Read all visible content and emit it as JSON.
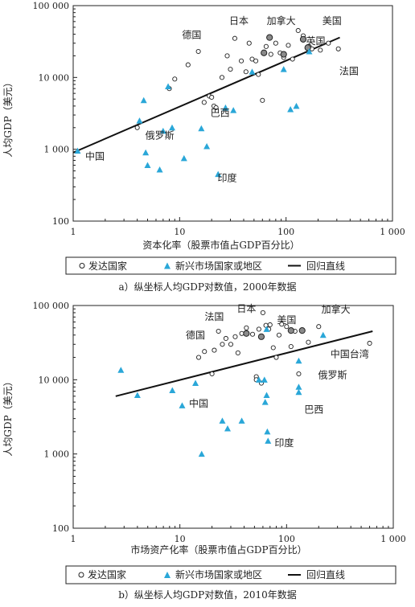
{
  "colors": {
    "emerging": "#2aa7d8",
    "developed_fill": "#ffffff",
    "highlighted_fill": "#8a8a8a",
    "line": "#111111"
  },
  "chart_data": [
    {
      "type": "scatter",
      "title": "a）纵坐标人均GDP对数值，2000年数据",
      "xlabel": "资本化率（股票市值占GDP百分比）",
      "ylabel": "人均GDP（美元）",
      "x_scale": "log",
      "y_scale": "log",
      "xlim": [
        1,
        1000
      ],
      "ylim": [
        100,
        100000
      ],
      "x_ticks": [
        "1",
        "10",
        "100",
        "1 000"
      ],
      "y_ticks": [
        "100",
        "1 000",
        "10 000",
        "100 000"
      ],
      "legend": {
        "placement": "below",
        "items": [
          "发达国家",
          "新兴市场国家或地区",
          "回归直线"
        ]
      },
      "regression": {
        "x": [
          1,
          320
        ],
        "y": [
          900,
          36000
        ]
      },
      "developed": [
        [
          4,
          2000
        ],
        [
          8,
          7000
        ],
        [
          9,
          9500
        ],
        [
          12,
          15000
        ],
        [
          15,
          23000
        ],
        [
          17,
          4500
        ],
        [
          19,
          5500
        ],
        [
          20,
          5300
        ],
        [
          21,
          4000
        ],
        [
          22,
          3800
        ],
        [
          25,
          10000
        ],
        [
          28,
          20000
        ],
        [
          30,
          13000
        ],
        [
          33,
          35000
        ],
        [
          38,
          17000
        ],
        [
          42,
          12000
        ],
        [
          45,
          30000
        ],
        [
          48,
          18000
        ],
        [
          52,
          17000
        ],
        [
          55,
          11000
        ],
        [
          60,
          4800
        ],
        [
          65,
          27000
        ],
        [
          72,
          21000
        ],
        [
          80,
          30000
        ],
        [
          88,
          22000
        ],
        [
          95,
          19000
        ],
        [
          105,
          28000
        ],
        [
          115,
          18000
        ],
        [
          130,
          45000
        ],
        [
          145,
          38000
        ],
        [
          165,
          27000
        ],
        [
          175,
          25000
        ],
        [
          210,
          24000
        ],
        [
          250,
          30000
        ],
        [
          310,
          25000
        ]
      ],
      "highlighted": [
        [
          70,
          36000
        ],
        [
          62,
          22000
        ],
        [
          95,
          21000
        ],
        [
          145,
          34000
        ],
        [
          160,
          26000
        ]
      ],
      "emerging": [
        [
          1.1,
          950
        ],
        [
          4.2,
          2500
        ],
        [
          4.6,
          4800
        ],
        [
          4.8,
          900
        ],
        [
          5.0,
          600
        ],
        [
          6.5,
          520
        ],
        [
          7.0,
          1800
        ],
        [
          7.8,
          7500
        ],
        [
          8.5,
          2000
        ],
        [
          11,
          750
        ],
        [
          16,
          1950
        ],
        [
          18,
          1100
        ],
        [
          23,
          450
        ],
        [
          27,
          3800
        ],
        [
          32,
          3500
        ],
        [
          48,
          12000
        ],
        [
          95,
          13000
        ],
        [
          110,
          3600
        ],
        [
          125,
          4000
        ],
        [
          165,
          23000
        ]
      ],
      "labels": [
        {
          "text": "日本",
          "x": 36,
          "y": 55000
        },
        {
          "text": "加拿大",
          "x": 90,
          "y": 55000
        },
        {
          "text": "美国",
          "x": 270,
          "y": 55000
        },
        {
          "text": "德国",
          "x": 13,
          "y": 35000
        },
        {
          "text": "英国",
          "x": 190,
          "y": 29000
        },
        {
          "text": "法国",
          "x": 390,
          "y": 11000
        },
        {
          "text": "巴西",
          "x": 24,
          "y": 2900
        },
        {
          "text": "俄罗斯",
          "x": 6.5,
          "y": 1400
        },
        {
          "text": "中国",
          "x": 1.6,
          "y": 720
        },
        {
          "text": "印度",
          "x": 28,
          "y": 360
        }
      ]
    },
    {
      "type": "scatter",
      "title": "b）纵坐标人均GDP对数值，2010年数据",
      "xlabel": "市场资产化率（股票市值占GDP百分比）",
      "ylabel": "人均GDP（美元）",
      "x_scale": "log",
      "y_scale": "log",
      "xlim": [
        1,
        1000
      ],
      "ylim": [
        100,
        100000
      ],
      "x_ticks": [
        "1",
        "10",
        "100",
        "1 000"
      ],
      "y_ticks": [
        "100",
        "1 000",
        "10 000",
        "100 000"
      ],
      "legend": {
        "placement": "below",
        "items": [
          "发达国家",
          "新兴市场国家或地区",
          "回归直线"
        ]
      },
      "regression": {
        "x": [
          2.5,
          640
        ],
        "y": [
          6000,
          45000
        ]
      },
      "developed": [
        [
          15,
          20000
        ],
        [
          17,
          24000
        ],
        [
          20,
          12000
        ],
        [
          21,
          25000
        ],
        [
          23,
          45000
        ],
        [
          25,
          30000
        ],
        [
          27,
          36000
        ],
        [
          30,
          30000
        ],
        [
          33,
          38000
        ],
        [
          35,
          23000
        ],
        [
          38,
          42000
        ],
        [
          42,
          50000
        ],
        [
          48,
          41000
        ],
        [
          52,
          11000
        ],
        [
          55,
          48000
        ],
        [
          60,
          80000
        ],
        [
          64,
          54000
        ],
        [
          68,
          48000
        ],
        [
          70,
          55000
        ],
        [
          75,
          27000
        ],
        [
          80,
          20000
        ],
        [
          85,
          40000
        ],
        [
          90,
          56000
        ],
        [
          100,
          52000
        ],
        [
          110,
          28000
        ],
        [
          120,
          45000
        ],
        [
          130,
          12000
        ],
        [
          160,
          32000
        ],
        [
          200,
          52000
        ],
        [
          600,
          31000
        ],
        [
          52,
          10000
        ],
        [
          58,
          9000
        ]
      ],
      "highlighted": [
        [
          42,
          42000
        ],
        [
          58,
          38000
        ],
        [
          110,
          46000
        ],
        [
          140,
          46000
        ]
      ],
      "emerging": [
        [
          2.8,
          13500
        ],
        [
          4.0,
          6200
        ],
        [
          8.5,
          7200
        ],
        [
          10.5,
          4500
        ],
        [
          14,
          9000
        ],
        [
          16,
          1000
        ],
        [
          25,
          2800
        ],
        [
          28,
          2200
        ],
        [
          38,
          2800
        ],
        [
          55,
          10000
        ],
        [
          62,
          10000
        ],
        [
          63,
          5000
        ],
        [
          65,
          6200
        ],
        [
          66,
          2000
        ],
        [
          67,
          1500
        ],
        [
          130,
          18000
        ],
        [
          130,
          8000
        ],
        [
          130,
          6800
        ],
        [
          220,
          40000
        ],
        [
          65,
          48000
        ]
      ],
      "labels": [
        {
          "text": "法国",
          "x": 21,
          "y": 64000
        },
        {
          "text": "日本",
          "x": 42,
          "y": 82000
        },
        {
          "text": "美国",
          "x": 100,
          "y": 58000
        },
        {
          "text": "加拿大",
          "x": 290,
          "y": 80000
        },
        {
          "text": "德国",
          "x": 14,
          "y": 36000
        },
        {
          "text": "中国台湾",
          "x": 390,
          "y": 20000
        },
        {
          "text": "俄罗斯",
          "x": 270,
          "y": 10500
        },
        {
          "text": "中国",
          "x": 15,
          "y": 4300
        },
        {
          "text": "巴西",
          "x": 180,
          "y": 3600
        },
        {
          "text": "印度",
          "x": 95,
          "y": 1280
        }
      ]
    }
  ]
}
